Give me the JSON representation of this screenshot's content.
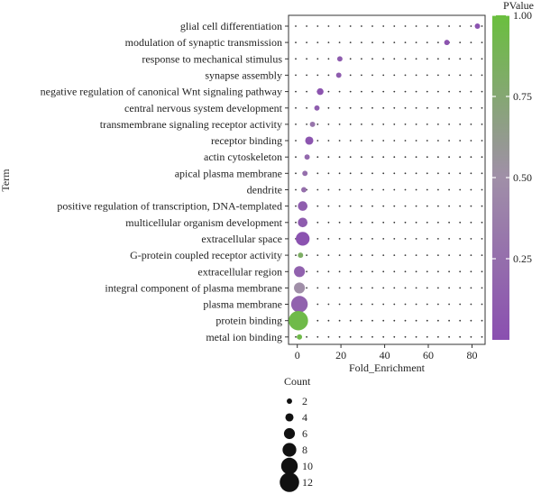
{
  "chart_data": {
    "type": "scatter",
    "xlabel": "Fold_Enrichment",
    "ylabel": "Term",
    "xlim": [
      -4,
      86
    ],
    "x_ticks": [
      0,
      20,
      40,
      60,
      80
    ],
    "grid": "dotted",
    "terms": [
      "glial cell differentiation",
      "modulation of synaptic transmission",
      "response to mechanical stimulus",
      "synapse assembly",
      "negative regulation of canonical Wnt signaling pathway",
      "central nervous system development",
      "transmembrane signaling receptor activity",
      "receptor binding",
      "actin cytoskeleton",
      "apical plasma membrane",
      "dendrite",
      "positive regulation of transcription, DNA-templated",
      "multicellular organism development",
      "extracellular space",
      "G-protein coupled receptor activity",
      "extracellular region",
      "integral component of plasma membrane",
      "plasma membrane",
      "protein binding",
      "metal ion binding"
    ],
    "points": [
      {
        "term": "glial cell differentiation",
        "x": 82.5,
        "count": 2,
        "pvalue": 0.03
      },
      {
        "term": "modulation of synaptic transmission",
        "x": 68.5,
        "count": 2,
        "pvalue": 0.04
      },
      {
        "term": "response to mechanical stimulus",
        "x": 19.5,
        "count": 2,
        "pvalue": 0.1
      },
      {
        "term": "synapse assembly",
        "x": 19.0,
        "count": 2,
        "pvalue": 0.1
      },
      {
        "term": "negative regulation of canonical Wnt signaling pathway",
        "x": 10.5,
        "count": 3,
        "pvalue": 0.04
      },
      {
        "term": "central nervous system development",
        "x": 9.0,
        "count": 2,
        "pvalue": 0.12
      },
      {
        "term": "transmembrane signaling receptor activity",
        "x": 7.0,
        "count": 2,
        "pvalue": 0.3
      },
      {
        "term": "receptor binding",
        "x": 5.5,
        "count": 4,
        "pvalue": 0.05
      },
      {
        "term": "actin cytoskeleton",
        "x": 4.5,
        "count": 2,
        "pvalue": 0.2
      },
      {
        "term": "apical plasma membrane",
        "x": 3.5,
        "count": 2,
        "pvalue": 0.25
      },
      {
        "term": "dendrite",
        "x": 3.0,
        "count": 2,
        "pvalue": 0.25
      },
      {
        "term": "positive regulation of transcription, DNA-templated",
        "x": 2.5,
        "count": 5,
        "pvalue": 0.12
      },
      {
        "term": "multicellular organism development",
        "x": 2.5,
        "count": 5,
        "pvalue": 0.1
      },
      {
        "term": "extracellular space",
        "x": 2.5,
        "count": 8,
        "pvalue": 0.03
      },
      {
        "term": "G-protein coupled receptor activity",
        "x": 1.5,
        "count": 2,
        "pvalue": 0.82
      },
      {
        "term": "extracellular region",
        "x": 1.0,
        "count": 6,
        "pvalue": 0.15
      },
      {
        "term": "integral component of plasma membrane",
        "x": 1.0,
        "count": 6,
        "pvalue": 0.5
      },
      {
        "term": "plasma membrane",
        "x": 1.0,
        "count": 10,
        "pvalue": 0.15
      },
      {
        "term": "protein binding",
        "x": 0.5,
        "count": 12,
        "pvalue": 0.95
      },
      {
        "term": "metal ion binding",
        "x": 1.0,
        "count": 2,
        "pvalue": 0.95
      }
    ],
    "color_legend": {
      "title": "PValue",
      "ticks": [
        0.25,
        0.5,
        0.75,
        1.0
      ],
      "tick_labels": [
        "0.25",
        "0.50",
        "0.75",
        "1.00"
      ],
      "range": [
        0.0,
        1.0
      ],
      "low_color": "#8a4fb0",
      "mid_color": "#a08fa8",
      "high_color": "#6abf3e"
    },
    "size_legend": {
      "title": "Count",
      "values": [
        2,
        4,
        6,
        8,
        10,
        12
      ],
      "labels": [
        "2",
        "4",
        "6",
        "8",
        "10",
        "12"
      ]
    }
  }
}
